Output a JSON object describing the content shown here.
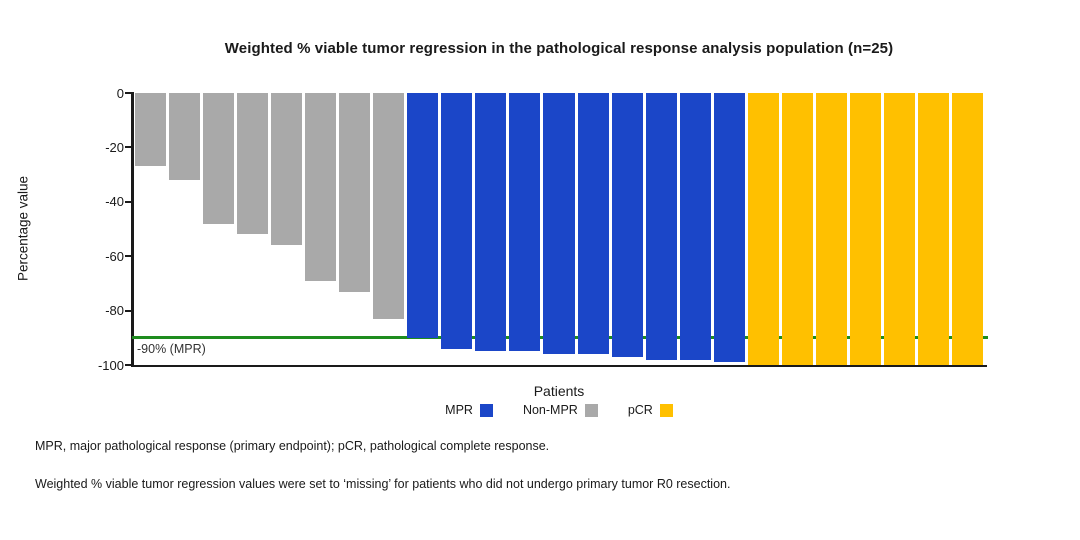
{
  "title": "Weighted % viable tumor regression in the pathological response analysis population (n=25)",
  "y_axis": {
    "label": "Percentage value",
    "ticks": [
      "0",
      "-20",
      "-40",
      "-60",
      "-80",
      "-100"
    ]
  },
  "x_axis": {
    "label": "Patients"
  },
  "reference_line": {
    "label": "-90% (MPR)",
    "value": -90,
    "color": "#1e8c1e"
  },
  "legend": [
    {
      "label": "MPR",
      "color": "#1b46c8"
    },
    {
      "label": "Non-MPR",
      "color": "#a9a9a9"
    },
    {
      "label": "pCR",
      "color": "#ffc000"
    }
  ],
  "footnotes": [
    "MPR, major pathological response (primary endpoint); pCR, pathological complete response.",
    "Weighted % viable tumor regression values were set to ‘missing’ for patients who did not undergo primary tumor R0 resection."
  ],
  "chart_data": {
    "type": "bar",
    "title": "Weighted % viable tumor regression in the pathological response analysis population (n=25)",
    "xlabel": "Patients",
    "ylabel": "Percentage value",
    "ylim": [
      -100,
      0
    ],
    "yticks": [
      0,
      -20,
      -40,
      -60,
      -80,
      -100
    ],
    "grid": false,
    "legend_position": "bottom",
    "reference_line": {
      "value": -90,
      "label": "-90% (MPR)",
      "color": "#1e8c1e"
    },
    "series": [
      {
        "name": "Non-MPR",
        "color": "#a9a9a9",
        "values": [
          -27,
          -32,
          -48,
          -52,
          -56,
          -69,
          -73,
          -83
        ]
      },
      {
        "name": "MPR",
        "color": "#1b46c8",
        "values": [
          -90,
          -94,
          -95,
          -95,
          -96,
          -96,
          -97,
          -98,
          -98,
          -99
        ]
      },
      {
        "name": "pCR",
        "color": "#ffc000",
        "values": [
          -100,
          -100,
          -100,
          -100,
          -100,
          -100,
          -100
        ]
      }
    ]
  }
}
